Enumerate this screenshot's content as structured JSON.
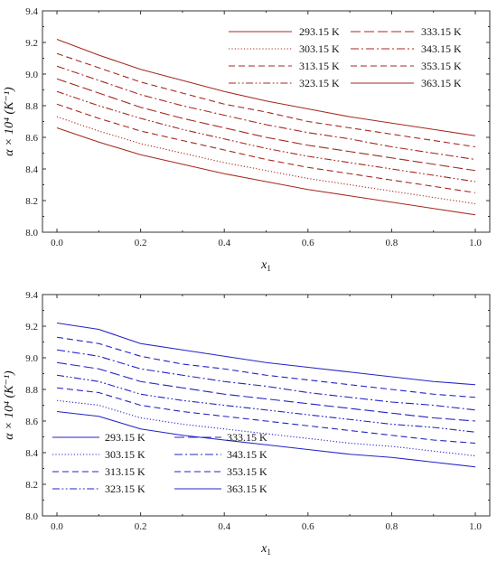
{
  "chart_data": [
    {
      "type": "line",
      "panel": "top",
      "color": "#a52a1f",
      "xlabel": "x",
      "xlabel_sub": "1",
      "ylabel": "α × 10⁴ (K⁻¹)",
      "xlim": [
        0.0,
        1.0
      ],
      "ylim": [
        8.0,
        9.4
      ],
      "xticks": [
        "0.0",
        "0.2",
        "0.4",
        "0.6",
        "0.8",
        "1.0"
      ],
      "yticks": [
        "8.0",
        "8.2",
        "8.4",
        "8.6",
        "8.8",
        "9.0",
        "9.2",
        "9.4"
      ],
      "legend_position": "top-right",
      "x": [
        0.0,
        0.1,
        0.2,
        0.3,
        0.4,
        0.5,
        0.6,
        0.7,
        0.8,
        0.9,
        1.0
      ],
      "series": [
        {
          "name": "293.15 K",
          "dash": "solid",
          "values": [
            8.66,
            8.57,
            8.49,
            8.43,
            8.37,
            8.32,
            8.27,
            8.23,
            8.19,
            8.15,
            8.11
          ]
        },
        {
          "name": "303.15 K",
          "dash": "dot",
          "values": [
            8.73,
            8.64,
            8.56,
            8.5,
            8.44,
            8.39,
            8.34,
            8.3,
            8.26,
            8.22,
            8.18
          ]
        },
        {
          "name": "313.15 K",
          "dash": "dash",
          "values": [
            8.81,
            8.72,
            8.64,
            8.58,
            8.52,
            8.46,
            8.41,
            8.37,
            8.33,
            8.29,
            8.25
          ]
        },
        {
          "name": "323.15 K",
          "dash": "dashdotdot",
          "values": [
            8.89,
            8.8,
            8.72,
            8.65,
            8.59,
            8.53,
            8.48,
            8.44,
            8.4,
            8.36,
            8.32
          ]
        },
        {
          "name": "333.15 K",
          "dash": "longdash",
          "values": [
            8.97,
            8.88,
            8.79,
            8.72,
            8.66,
            8.6,
            8.55,
            8.51,
            8.47,
            8.43,
            8.39
          ]
        },
        {
          "name": "343.15 K",
          "dash": "dashdot",
          "values": [
            9.05,
            8.96,
            8.87,
            8.8,
            8.74,
            8.68,
            8.63,
            8.59,
            8.54,
            8.5,
            8.46
          ]
        },
        {
          "name": "353.15 K",
          "dash": "dash",
          "values": [
            9.13,
            9.04,
            8.95,
            8.88,
            8.81,
            8.76,
            8.7,
            8.66,
            8.62,
            8.58,
            8.54
          ]
        },
        {
          "name": "363.15 K",
          "dash": "solid",
          "values": [
            9.22,
            9.12,
            9.03,
            8.96,
            8.89,
            8.83,
            8.78,
            8.73,
            8.69,
            8.65,
            8.61
          ]
        }
      ]
    },
    {
      "type": "line",
      "panel": "bottom",
      "color": "#2323c8",
      "xlabel": "x",
      "xlabel_sub": "1",
      "ylabel": "α × 10⁴ (K⁻¹)",
      "xlim": [
        0.0,
        1.0
      ],
      "ylim": [
        8.0,
        9.4
      ],
      "xticks": [
        "0.0",
        "0.2",
        "0.4",
        "0.6",
        "0.8",
        "1.0"
      ],
      "yticks": [
        "8.0",
        "8.2",
        "8.4",
        "8.6",
        "8.8",
        "9.0",
        "9.2",
        "9.4"
      ],
      "legend_position": "bottom-left",
      "x": [
        0.0,
        0.1,
        0.2,
        0.3,
        0.4,
        0.5,
        0.6,
        0.7,
        0.8,
        0.9,
        1.0
      ],
      "series": [
        {
          "name": "293.15 K",
          "dash": "solid",
          "values": [
            8.66,
            8.63,
            8.55,
            8.51,
            8.48,
            8.45,
            8.42,
            8.39,
            8.37,
            8.34,
            8.31
          ]
        },
        {
          "name": "303.15 K",
          "dash": "dot",
          "values": [
            8.73,
            8.7,
            8.62,
            8.58,
            8.55,
            8.52,
            8.49,
            8.46,
            8.44,
            8.41,
            8.38
          ]
        },
        {
          "name": "313.15 K",
          "dash": "dash",
          "values": [
            8.81,
            8.78,
            8.7,
            8.66,
            8.63,
            8.6,
            8.57,
            8.54,
            8.51,
            8.48,
            8.46
          ]
        },
        {
          "name": "323.15 K",
          "dash": "dashdotdot",
          "values": [
            8.89,
            8.85,
            8.77,
            8.73,
            8.7,
            8.67,
            8.64,
            8.61,
            8.58,
            8.56,
            8.53
          ]
        },
        {
          "name": "333.15 K",
          "dash": "longdash",
          "values": [
            8.97,
            8.93,
            8.85,
            8.81,
            8.77,
            8.74,
            8.71,
            8.68,
            8.65,
            8.62,
            8.6
          ]
        },
        {
          "name": "343.15 K",
          "dash": "dashdot",
          "values": [
            9.05,
            9.01,
            8.93,
            8.89,
            8.85,
            8.82,
            8.78,
            8.75,
            8.72,
            8.7,
            8.67
          ]
        },
        {
          "name": "353.15 K",
          "dash": "dash",
          "values": [
            9.13,
            9.09,
            9.01,
            8.96,
            8.93,
            8.89,
            8.86,
            8.83,
            8.8,
            8.77,
            8.75
          ]
        },
        {
          "name": "363.15 K",
          "dash": "solid",
          "values": [
            9.22,
            9.18,
            9.09,
            9.05,
            9.01,
            8.97,
            8.94,
            8.91,
            8.88,
            8.85,
            8.83
          ]
        }
      ]
    }
  ]
}
